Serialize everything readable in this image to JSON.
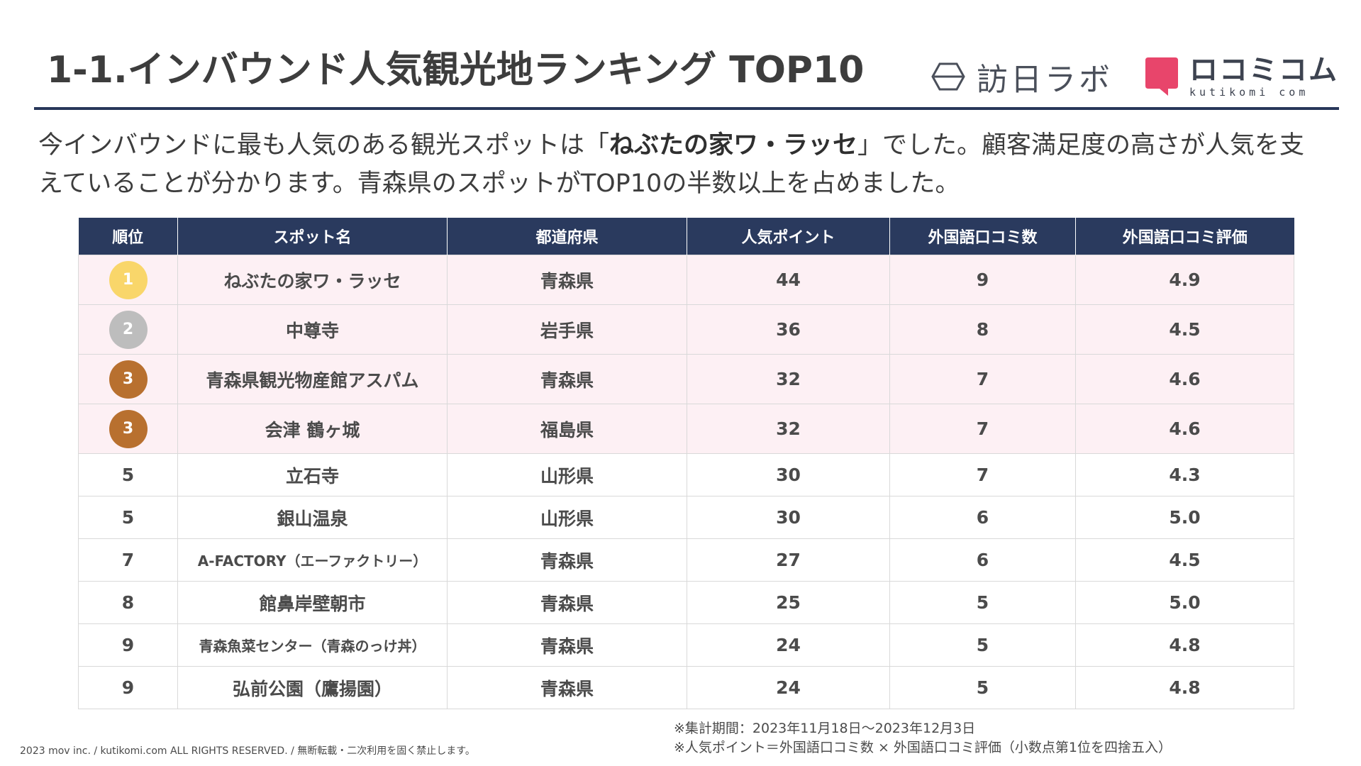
{
  "header": {
    "title": "1-1.インバウンド人気観光地ランキング TOP10",
    "logo_houjitsu_text": "訪日ラボ",
    "logo_kuchikomi_jp": "ロコミコム",
    "logo_kuchikomi_en": "kutikomi com"
  },
  "lead": {
    "before": "今インバウンドに最も人気のある観光スポットは「",
    "highlight": "ねぶたの家ワ・ラッセ",
    "after": "」でした。顧客満足度の高さが人気を支えていることが分かります。青森県のスポットがTOP10の半数以上を占めました。"
  },
  "colors": {
    "header_bg": "#2a3a5e",
    "top_row_bg": "#fdf0f4",
    "gold": "#f9d66a",
    "silver": "#bdbdbd",
    "bronze": "#b8702f"
  },
  "table": {
    "columns": [
      "順位",
      "スポット名",
      "都道府県",
      "人気ポイント",
      "外国語口コミ数",
      "外国語口コミ評価"
    ],
    "rows": [
      {
        "rank": "1",
        "medal": "gold",
        "name": "ねぶたの家ワ・ラッセ",
        "pref": "青森県",
        "points": "44",
        "reviews": "9",
        "rating": "4.9"
      },
      {
        "rank": "2",
        "medal": "silver",
        "name": "中尊寺",
        "pref": "岩手県",
        "points": "36",
        "reviews": "8",
        "rating": "4.5"
      },
      {
        "rank": "3",
        "medal": "bronze",
        "name": "青森県観光物産館アスパム",
        "pref": "青森県",
        "points": "32",
        "reviews": "7",
        "rating": "4.6"
      },
      {
        "rank": "3",
        "medal": "bronze",
        "name": "会津 鶴ヶ城",
        "pref": "福島県",
        "points": "32",
        "reviews": "7",
        "rating": "4.6"
      },
      {
        "rank": "5",
        "medal": "",
        "name": "立石寺",
        "pref": "山形県",
        "points": "30",
        "reviews": "7",
        "rating": "4.3"
      },
      {
        "rank": "5",
        "medal": "",
        "name": "銀山温泉",
        "pref": "山形県",
        "points": "30",
        "reviews": "6",
        "rating": "5.0"
      },
      {
        "rank": "7",
        "medal": "",
        "name": "A-FACTORY（エーファクトリー）",
        "pref": "青森県",
        "points": "27",
        "reviews": "6",
        "rating": "4.5"
      },
      {
        "rank": "8",
        "medal": "",
        "name": "館鼻岸壁朝市",
        "pref": "青森県",
        "points": "25",
        "reviews": "5",
        "rating": "5.0"
      },
      {
        "rank": "9",
        "medal": "",
        "name": "青森魚菜センター（青森のっけ丼）",
        "pref": "青森県",
        "points": "24",
        "reviews": "5",
        "rating": "4.8"
      },
      {
        "rank": "9",
        "medal": "",
        "name": "弘前公園（鷹揚園）",
        "pref": "青森県",
        "points": "24",
        "reviews": "5",
        "rating": "4.8"
      }
    ]
  },
  "footer": {
    "note_period": "※集計期間：2023年11月18日〜2023年12月3日",
    "note_formula": "※人気ポイント＝外国語口コミ数 × 外国語口コミ評価（小数点第1位を四捨五入）",
    "copyright": "2023 mov inc. / kutikomi.com ALL RIGHTS RESERVED. / 無断転載・二次利用を固く禁止します。"
  }
}
